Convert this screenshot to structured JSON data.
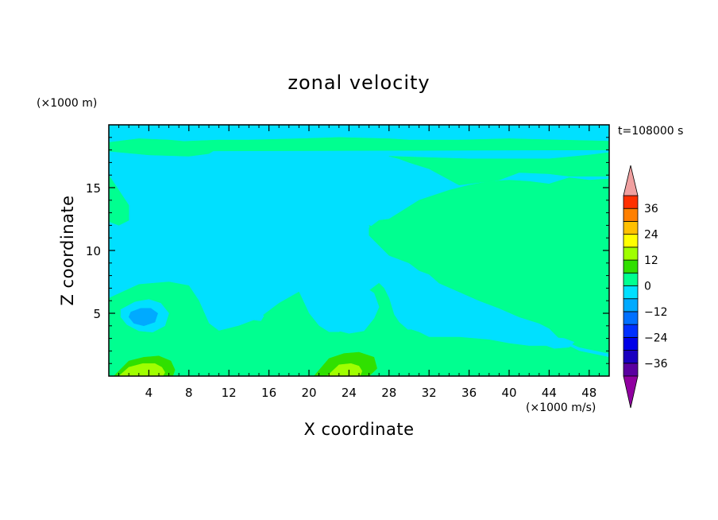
{
  "chart_data": {
    "type": "heatmap",
    "title": "zonal velocity",
    "xlabel": "X coordinate",
    "ylabel": "Z coordinate",
    "x_unit": "(×1000 m/s)",
    "y_unit": "(×1000 m)",
    "time_label": "t=108000 s",
    "xlim": [
      0,
      50
    ],
    "ylim": [
      0,
      20
    ],
    "x_ticks": [
      4,
      8,
      12,
      16,
      20,
      24,
      28,
      32,
      36,
      40,
      44,
      48
    ],
    "y_ticks": [
      5,
      10,
      15
    ],
    "colorbar": {
      "ticks": [
        36,
        24,
        12,
        0,
        -12,
        -24,
        -36
      ],
      "levels": [
        -42,
        -36,
        -30,
        -24,
        -18,
        -12,
        -6,
        0,
        6,
        12,
        18,
        24,
        30,
        36,
        42
      ],
      "colors": [
        "#5a00a0",
        "#1a00c0",
        "#0000e8",
        "#0030ff",
        "#0070ff",
        "#00aaff",
        "#00e0ff",
        "#00ff90",
        "#30e000",
        "#a0ff00",
        "#ffff00",
        "#ffc000",
        "#ff8000",
        "#ff3000",
        "#e00000"
      ],
      "over_color": "#f0a0a0",
      "under_color": "#9000a0"
    },
    "background_field_value": -3,
    "regions": [
      {
        "u": 2,
        "x": [
          0,
          3,
          8,
          11,
          14,
          19,
          23,
          28,
          30,
          35,
          40,
          45,
          50,
          50,
          0
        ],
        "y": [
          18.4,
          18.5,
          18.7,
          18.8,
          18.8,
          18.9,
          19.0,
          18.9,
          18.8,
          18.8,
          18.9,
          18.8,
          18.7,
          18.0,
          17.9
        ]
      },
      {
        "u": 2,
        "x": [
          0,
          4,
          8,
          10,
          11,
          10,
          6,
          3,
          0
        ],
        "y": [
          17.9,
          17.6,
          17.5,
          17.7,
          18.2,
          18.5,
          18.8,
          18.9,
          18.6
        ]
      },
      {
        "u": 2,
        "x": [
          28,
          32,
          36,
          40,
          44,
          48,
          50,
          50,
          46,
          44,
          41,
          39,
          35,
          32,
          30,
          29,
          28
        ],
        "y": [
          17.5,
          17.4,
          17.3,
          17.3,
          17.3,
          17.6,
          17.8,
          15.9,
          15.9,
          16.1,
          16.2,
          15.6,
          15.2,
          16.5,
          17.0,
          17.3,
          17.5
        ]
      },
      {
        "u": 2,
        "x": [
          31,
          34,
          36,
          38,
          40,
          42,
          44,
          46,
          48,
          50,
          50,
          47,
          45,
          44,
          43,
          41,
          39,
          37,
          35,
          33,
          32,
          31,
          30,
          29,
          28,
          26.5,
          26,
          27,
          28,
          30,
          31
        ],
        "y": [
          14.0,
          14.8,
          15.2,
          15.5,
          15.6,
          15.5,
          15.3,
          15.8,
          15.6,
          15.7,
          1.8,
          2.3,
          3.0,
          3.8,
          4.2,
          4.7,
          5.4,
          6.0,
          6.7,
          7.4,
          8.1,
          8.4,
          9.0,
          9.6,
          10.4,
          11.2,
          12.0,
          11.7,
          12.5,
          13.5,
          14.0
        ]
      },
      {
        "u": 2,
        "x": [
          26,
          27,
          28,
          30,
          32,
          34,
          36,
          37,
          38,
          36,
          34,
          32,
          30,
          28,
          27,
          26
        ],
        "y": [
          11.8,
          12.4,
          12.5,
          12.3,
          12.1,
          12.0,
          11.9,
          11.0,
          10.0,
          9.0,
          8.2,
          8.5,
          9.0,
          9.6,
          10.4,
          11.2
        ]
      },
      {
        "u": 2,
        "x": [
          0,
          1,
          2,
          2,
          1,
          0
        ],
        "y": [
          16.0,
          14.8,
          13.6,
          12.4,
          12.0,
          12.3
        ]
      },
      {
        "u": 2,
        "x": [
          0,
          3,
          6,
          8,
          9,
          10,
          11,
          13,
          15,
          17,
          19,
          20,
          21,
          22,
          23,
          24,
          25,
          26,
          27,
          27.5,
          28,
          28.5,
          29,
          30,
          31,
          32,
          35,
          38,
          40,
          42,
          44,
          46,
          47,
          50,
          50,
          0
        ],
        "y": [
          6.2,
          7.3,
          7.5,
          7.2,
          6.0,
          4.2,
          3.6,
          4.0,
          4.6,
          5.8,
          6.7,
          5.0,
          4.0,
          3.5,
          3.5,
          3.9,
          5.0,
          6.8,
          7.4,
          7.0,
          6.2,
          4.9,
          4.3,
          3.6,
          3.2,
          3.1,
          3.1,
          2.9,
          2.6,
          2.4,
          2.4,
          2.4,
          2.0,
          1.5,
          0,
          0
        ]
      },
      {
        "u": 4,
        "x": [
          9,
          10,
          11.5,
          13,
          14,
          12.5,
          11,
          9.5
        ],
        "y": [
          2.4,
          2.9,
          2.9,
          2.5,
          2.0,
          1.7,
          1.6,
          1.9
        ]
      },
      {
        "u": 4,
        "x": [
          14.2,
          15,
          15.2,
          14.6,
          14.0
        ],
        "y": [
          2.6,
          2.5,
          2.0,
          1.8,
          2.2
        ]
      },
      {
        "u": 4,
        "x": [
          17.2,
          18.2,
          18.5,
          17.6,
          17.0
        ],
        "y": [
          4.3,
          4.3,
          3.8,
          3.6,
          4.0
        ]
      },
      {
        "u": 4,
        "x": [
          29,
          30.2,
          31,
          32,
          31.5,
          30.5,
          29.5
        ],
        "y": [
          3.6,
          3.7,
          3.5,
          3.1,
          2.7,
          2.9,
          3.1
        ]
      },
      {
        "u": 4,
        "x": [
          34.5,
          35.5,
          36.5,
          37,
          36,
          34.8
        ],
        "y": [
          1.8,
          1.9,
          1.9,
          1.7,
          1.5,
          1.6
        ]
      },
      {
        "u": 6,
        "x": [
          0.5,
          2,
          3.5,
          5,
          6.2,
          6.6,
          6.4,
          4,
          2,
          0.8
        ],
        "y": [
          0,
          1.2,
          1.5,
          1.6,
          1.2,
          0.5,
          0,
          0,
          0,
          0
        ]
      },
      {
        "u": 6,
        "x": [
          20.5,
          22,
          23.5,
          25,
          26.5,
          26.8,
          26,
          22,
          21,
          20.5
        ],
        "y": [
          0,
          1.4,
          1.8,
          1.9,
          1.5,
          0.6,
          0,
          0,
          0,
          0
        ]
      },
      {
        "u": 12,
        "x": [
          1,
          2,
          3.4,
          4.6,
          5.3,
          5.6,
          5.4,
          2,
          1.2
        ],
        "y": [
          0,
          0.7,
          1.0,
          1.0,
          0.7,
          0.3,
          0,
          0,
          0
        ]
      },
      {
        "u": 12,
        "x": [
          21.8,
          23,
          24.2,
          25,
          25.3,
          25.1,
          22.2
        ],
        "y": [
          0,
          0.9,
          1.0,
          0.8,
          0.4,
          0,
          0
        ]
      },
      {
        "u": -6,
        "x": [
          1.2,
          2.6,
          4,
          5.2,
          6,
          5.6,
          4.4,
          3,
          1.8,
          1.2
        ],
        "y": [
          5.3,
          5.9,
          6.1,
          5.8,
          5.0,
          4.0,
          3.5,
          3.6,
          4.1,
          4.7
        ]
      },
      {
        "u": -6,
        "x": [
          21,
          22,
          23.5,
          25,
          26.5,
          27,
          26.5,
          25.5,
          24,
          22.5,
          21.5,
          21
        ],
        "y": [
          6.7,
          7.3,
          7.6,
          7.4,
          6.6,
          5.5,
          4.6,
          3.6,
          3.4,
          3.7,
          4.5,
          5.6
        ]
      },
      {
        "u": -6,
        "x": [
          43,
          44,
          45.5,
          46.5,
          46,
          44.5,
          43.5
        ],
        "y": [
          3.0,
          3.1,
          3.0,
          2.7,
          2.3,
          2.2,
          2.5
        ]
      },
      {
        "u": -6,
        "x": [
          13.9,
          14.8,
          15.5,
          15.2,
          14.2
        ],
        "y": [
          5.0,
          5.1,
          4.8,
          4.4,
          4.5
        ]
      },
      {
        "u": -12,
        "x": [
          2.2,
          3.2,
          4.2,
          4.9,
          4.6,
          3.5,
          2.5,
          2.0
        ],
        "y": [
          5.1,
          5.4,
          5.4,
          5.0,
          4.3,
          4.0,
          4.2,
          4.7
        ]
      }
    ]
  }
}
